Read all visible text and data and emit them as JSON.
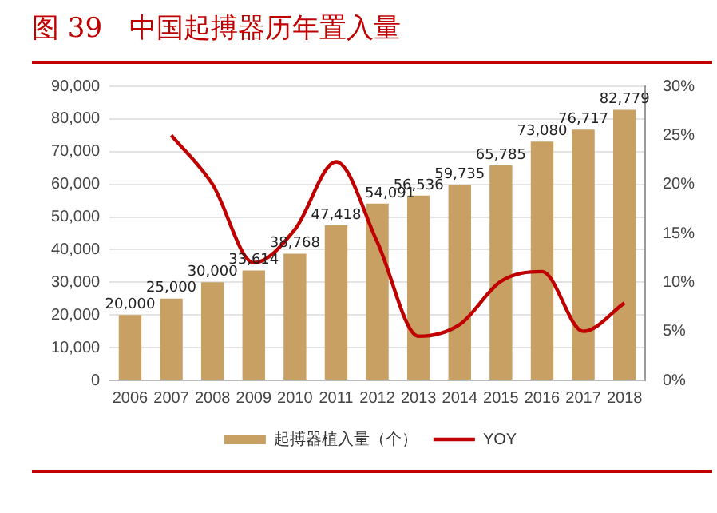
{
  "chart_data": {
    "type": "bar",
    "title": "图 39　中国起搏器历年置入量",
    "categories": [
      "2006",
      "2007",
      "2008",
      "2009",
      "2010",
      "2011",
      "2012",
      "2013",
      "2014",
      "2015",
      "2016",
      "2017",
      "2018"
    ],
    "series": [
      {
        "name": "起搏器植入量（个）",
        "color": "#c9a063",
        "values": [
          20000,
          25000,
          30000,
          33614,
          38768,
          47418,
          54091,
          56536,
          59735,
          65785,
          73080,
          76717,
          82779
        ],
        "value_labels": [
          "20,000",
          "25,000",
          "30,000",
          "33,614",
          "38,768",
          "47,418",
          "54,091",
          "56,536",
          "59,735",
          "65,785",
          "73,080",
          "76,717",
          "82,779"
        ]
      },
      {
        "name": "YOY",
        "type": "line",
        "axis": "y2",
        "color": "#c00000",
        "values": [
          null,
          25,
          20,
          12.0,
          15.4,
          22.3,
          14.1,
          4.5,
          5.7,
          10.1,
          11.1,
          5.0,
          7.9
        ]
      }
    ],
    "ylim": [
      0,
      90000
    ],
    "yticks": [
      {
        "value": 0,
        "label": "0"
      },
      {
        "value": 10000,
        "label": "10,000"
      },
      {
        "value": 20000,
        "label": "20,000"
      },
      {
        "value": 30000,
        "label": "30,000"
      },
      {
        "value": 40000,
        "label": "40,000"
      },
      {
        "value": 50000,
        "label": "50,000"
      },
      {
        "value": 60000,
        "label": "60,000"
      },
      {
        "value": 70000,
        "label": "70,000"
      },
      {
        "value": 80000,
        "label": "80,000"
      },
      {
        "value": 90000,
        "label": "90,000"
      }
    ],
    "y2lim": [
      0,
      30
    ],
    "y2ticks": [
      {
        "value": 0,
        "label": "0%"
      },
      {
        "value": 5,
        "label": "5%"
      },
      {
        "value": 10,
        "label": "10%"
      },
      {
        "value": 15,
        "label": "15%"
      },
      {
        "value": 20,
        "label": "20%"
      },
      {
        "value": 25,
        "label": "25%"
      },
      {
        "value": 30,
        "label": "30%"
      }
    ],
    "grid": "y",
    "legend": "bottom",
    "marker": "none",
    "line_style": "solid"
  }
}
